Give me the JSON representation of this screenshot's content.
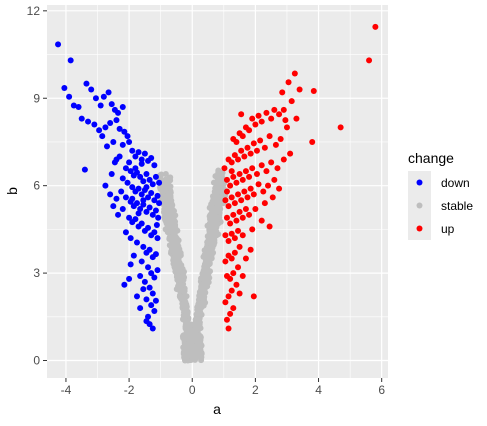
{
  "chart_data": {
    "type": "scatter",
    "xlabel": "a",
    "ylabel": "b",
    "xlim": [
      -4.6,
      6.2
    ],
    "ylim": [
      -0.6,
      12.2
    ],
    "x_ticks": [
      -4,
      -2,
      0,
      2,
      4,
      6
    ],
    "y_ticks": [
      0,
      3,
      6,
      9,
      12
    ],
    "grid": true,
    "legend": {
      "title": "change",
      "placement": "right",
      "entries": [
        {
          "label": "down",
          "color": "#0000FF"
        },
        {
          "label": "stable",
          "color": "#BEBEBE"
        },
        {
          "label": "up",
          "color": "#FF0000"
        }
      ]
    },
    "panel_background": "#EBEBEB",
    "grid_color": "#FFFFFF",
    "series": [
      {
        "name": "down",
        "color": "#0000FF",
        "points": [
          [
            -4.25,
            10.85
          ],
          [
            -3.85,
            10.3
          ],
          [
            -4.05,
            9.35
          ],
          [
            -3.75,
            8.75
          ],
          [
            -3.6,
            8.7
          ],
          [
            -3.9,
            9.05
          ],
          [
            -3.35,
            9.5
          ],
          [
            -3.2,
            9.3
          ],
          [
            -3.05,
            9.0
          ],
          [
            -2.9,
            8.75
          ],
          [
            -2.8,
            9.05
          ],
          [
            -2.65,
            9.2
          ],
          [
            -2.55,
            8.8
          ],
          [
            -2.45,
            8.6
          ],
          [
            -2.35,
            8.5
          ],
          [
            -2.2,
            8.7
          ],
          [
            -3.5,
            8.3
          ],
          [
            -3.3,
            8.2
          ],
          [
            -3.1,
            8.1
          ],
          [
            -2.95,
            7.9
          ],
          [
            -2.75,
            8.0
          ],
          [
            -2.6,
            8.15
          ],
          [
            -2.4,
            8.25
          ],
          [
            -2.3,
            7.95
          ],
          [
            -2.15,
            7.85
          ],
          [
            -2.05,
            7.7
          ],
          [
            -2.5,
            7.5
          ],
          [
            -2.7,
            7.35
          ],
          [
            -2.85,
            7.7
          ],
          [
            -2.2,
            7.4
          ],
          [
            -2.0,
            7.5
          ],
          [
            -1.9,
            7.2
          ],
          [
            -1.8,
            7.0
          ],
          [
            -1.7,
            7.15
          ],
          [
            -1.6,
            6.9
          ],
          [
            -1.5,
            7.1
          ],
          [
            -1.4,
            6.85
          ],
          [
            -1.3,
            6.95
          ],
          [
            -1.2,
            6.7
          ],
          [
            -2.3,
            7.0
          ],
          [
            -2.45,
            6.8
          ],
          [
            -2.1,
            6.6
          ],
          [
            -1.95,
            6.5
          ],
          [
            -1.85,
            6.35
          ],
          [
            -1.75,
            6.45
          ],
          [
            -1.65,
            6.3
          ],
          [
            -1.55,
            6.15
          ],
          [
            -1.45,
            6.4
          ],
          [
            -1.35,
            6.2
          ],
          [
            -1.25,
            6.05
          ],
          [
            -1.15,
            6.3
          ],
          [
            -2.2,
            6.25
          ],
          [
            -2.05,
            6.1
          ],
          [
            -1.9,
            5.95
          ],
          [
            -1.8,
            5.8
          ],
          [
            -1.7,
            5.9
          ],
          [
            -1.6,
            5.7
          ],
          [
            -1.5,
            5.85
          ],
          [
            -1.4,
            5.6
          ],
          [
            -1.3,
            5.75
          ],
          [
            -1.2,
            5.5
          ],
          [
            -1.1,
            5.65
          ],
          [
            -2.1,
            5.6
          ],
          [
            -1.95,
            5.45
          ],
          [
            -1.85,
            5.3
          ],
          [
            -1.75,
            5.4
          ],
          [
            -1.65,
            5.2
          ],
          [
            -1.55,
            5.35
          ],
          [
            -1.45,
            5.1
          ],
          [
            -1.35,
            5.25
          ],
          [
            -1.25,
            5.0
          ],
          [
            -1.15,
            5.15
          ],
          [
            -2.2,
            5.2
          ],
          [
            -2.35,
            5.0
          ],
          [
            -2.5,
            5.3
          ],
          [
            -2.0,
            4.9
          ],
          [
            -1.9,
            4.75
          ],
          [
            -1.8,
            4.85
          ],
          [
            -1.7,
            4.6
          ],
          [
            -1.6,
            4.7
          ],
          [
            -1.5,
            4.45
          ],
          [
            -1.4,
            4.55
          ],
          [
            -1.3,
            4.3
          ],
          [
            -1.2,
            4.4
          ],
          [
            -1.1,
            4.2
          ],
          [
            -2.1,
            4.4
          ],
          [
            -1.95,
            4.2
          ],
          [
            -1.75,
            4.05
          ],
          [
            -1.55,
            3.9
          ],
          [
            -1.45,
            3.7
          ],
          [
            -1.35,
            3.8
          ],
          [
            -1.25,
            3.55
          ],
          [
            -1.15,
            3.65
          ],
          [
            -1.6,
            3.4
          ],
          [
            -1.4,
            3.2
          ],
          [
            -1.3,
            3.0
          ],
          [
            -1.2,
            2.85
          ],
          [
            -1.5,
            2.7
          ],
          [
            -1.35,
            2.5
          ],
          [
            -1.25,
            2.3
          ],
          [
            -1.45,
            2.1
          ],
          [
            -1.3,
            1.9
          ],
          [
            -1.2,
            1.7
          ],
          [
            -1.4,
            1.5
          ],
          [
            -1.35,
            1.25
          ],
          [
            -1.25,
            1.1
          ],
          [
            -2.0,
            2.8
          ],
          [
            -2.15,
            2.6
          ],
          [
            -1.75,
            2.2
          ],
          [
            -1.65,
            1.8
          ],
          [
            -3.4,
            6.55
          ],
          [
            -2.75,
            6.0
          ],
          [
            -2.6,
            5.7
          ],
          [
            -2.4,
            6.9
          ],
          [
            -2.55,
            6.4
          ],
          [
            -1.05,
            6.1
          ],
          [
            -1.05,
            5.4
          ],
          [
            -1.08,
            4.9
          ],
          [
            -1.6,
            6.75
          ],
          [
            -1.8,
            6.6
          ],
          [
            -2.0,
            6.8
          ],
          [
            -1.45,
            5.95
          ],
          [
            -1.55,
            5.5
          ],
          [
            -1.7,
            5.05
          ],
          [
            -1.9,
            5.55
          ],
          [
            -2.25,
            5.8
          ],
          [
            -2.4,
            5.55
          ],
          [
            -1.85,
            3.6
          ],
          [
            -1.95,
            3.3
          ],
          [
            -1.65,
            2.9
          ],
          [
            -1.55,
            2.45
          ],
          [
            -1.45,
            1.35
          ],
          [
            -1.15,
            2.05
          ],
          [
            -1.1,
            3.1
          ],
          [
            -1.12,
            4.65
          ]
        ]
      },
      {
        "name": "up",
        "color": "#FF0000",
        "points": [
          [
            5.8,
            11.45
          ],
          [
            5.6,
            10.3
          ],
          [
            4.7,
            8.0
          ],
          [
            3.85,
            9.25
          ],
          [
            3.25,
            9.85
          ],
          [
            3.05,
            9.55
          ],
          [
            3.15,
            8.9
          ],
          [
            2.85,
            9.2
          ],
          [
            2.9,
            8.6
          ],
          [
            2.75,
            8.45
          ],
          [
            2.6,
            8.6
          ],
          [
            2.5,
            8.3
          ],
          [
            2.35,
            8.5
          ],
          [
            2.2,
            8.2
          ],
          [
            2.1,
            8.4
          ],
          [
            2.0,
            8.1
          ],
          [
            1.9,
            8.3
          ],
          [
            1.8,
            7.9
          ],
          [
            1.7,
            8.0
          ],
          [
            1.6,
            7.7
          ],
          [
            1.5,
            7.8
          ],
          [
            3.0,
            8.0
          ],
          [
            3.8,
            7.5
          ],
          [
            2.8,
            7.6
          ],
          [
            2.65,
            7.4
          ],
          [
            2.45,
            7.7
          ],
          [
            2.3,
            7.3
          ],
          [
            2.15,
            7.55
          ],
          [
            2.05,
            7.2
          ],
          [
            1.95,
            7.45
          ],
          [
            1.85,
            7.1
          ],
          [
            1.75,
            7.3
          ],
          [
            1.65,
            7.0
          ],
          [
            1.55,
            7.2
          ],
          [
            1.45,
            6.9
          ],
          [
            1.35,
            7.05
          ],
          [
            1.25,
            6.8
          ],
          [
            1.15,
            6.9
          ],
          [
            3.1,
            7.1
          ],
          [
            2.9,
            6.9
          ],
          [
            2.7,
            6.6
          ],
          [
            2.5,
            6.8
          ],
          [
            2.35,
            6.5
          ],
          [
            2.2,
            6.7
          ],
          [
            2.05,
            6.4
          ],
          [
            1.9,
            6.6
          ],
          [
            1.8,
            6.3
          ],
          [
            1.7,
            6.5
          ],
          [
            1.6,
            6.2
          ],
          [
            1.5,
            6.4
          ],
          [
            1.4,
            6.1
          ],
          [
            1.3,
            6.3
          ],
          [
            1.2,
            6.0
          ],
          [
            1.1,
            6.2
          ],
          [
            2.6,
            6.2
          ],
          [
            2.4,
            6.0
          ],
          [
            2.25,
            5.8
          ],
          [
            2.1,
            6.05
          ],
          [
            1.95,
            5.7
          ],
          [
            1.85,
            5.9
          ],
          [
            1.75,
            5.6
          ],
          [
            1.65,
            5.8
          ],
          [
            1.55,
            5.5
          ],
          [
            1.45,
            5.7
          ],
          [
            1.35,
            5.4
          ],
          [
            1.25,
            5.6
          ],
          [
            1.15,
            5.3
          ],
          [
            1.05,
            5.5
          ],
          [
            2.3,
            5.4
          ],
          [
            2.0,
            5.2
          ],
          [
            1.8,
            5.0
          ],
          [
            1.7,
            5.2
          ],
          [
            1.6,
            4.9
          ],
          [
            1.5,
            5.1
          ],
          [
            1.4,
            4.8
          ],
          [
            1.3,
            5.0
          ],
          [
            1.2,
            4.7
          ],
          [
            1.1,
            4.9
          ],
          [
            2.2,
            4.8
          ],
          [
            1.9,
            4.5
          ],
          [
            1.6,
            4.3
          ],
          [
            1.45,
            4.45
          ],
          [
            1.35,
            4.2
          ],
          [
            1.25,
            4.35
          ],
          [
            1.15,
            4.1
          ],
          [
            1.05,
            4.3
          ],
          [
            1.5,
            3.9
          ],
          [
            1.35,
            3.7
          ],
          [
            1.25,
            3.5
          ],
          [
            1.15,
            3.6
          ],
          [
            1.05,
            3.4
          ],
          [
            1.45,
            3.2
          ],
          [
            1.3,
            3.0
          ],
          [
            1.2,
            2.8
          ],
          [
            1.1,
            2.9
          ],
          [
            1.4,
            2.6
          ],
          [
            1.25,
            2.4
          ],
          [
            1.15,
            2.2
          ],
          [
            1.05,
            2.0
          ],
          [
            1.3,
            1.8
          ],
          [
            1.2,
            1.6
          ],
          [
            1.1,
            1.4
          ],
          [
            1.15,
            1.1
          ],
          [
            1.95,
            2.2
          ],
          [
            1.5,
            2.3
          ],
          [
            2.55,
            5.6
          ],
          [
            2.75,
            5.9
          ],
          [
            2.45,
            4.6
          ],
          [
            1.85,
            3.8
          ],
          [
            1.7,
            3.5
          ],
          [
            1.6,
            2.9
          ],
          [
            3.3,
            8.3
          ],
          [
            3.4,
            9.3
          ],
          [
            2.95,
            8.25
          ],
          [
            1.55,
            8.45
          ],
          [
            1.4,
            7.5
          ],
          [
            1.3,
            7.6
          ],
          [
            1.25,
            6.5
          ],
          [
            1.1,
            5.8
          ],
          [
            1.02,
            6.6
          ]
        ]
      }
    ]
  }
}
